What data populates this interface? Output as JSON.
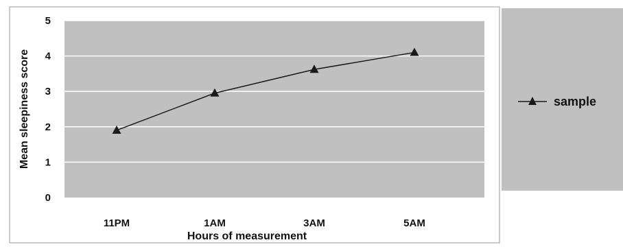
{
  "chart_data": {
    "type": "line",
    "categories": [
      "11PM",
      "1AM",
      "3AM",
      "5AM"
    ],
    "series": [
      {
        "name": "sample",
        "values": [
          1.9,
          2.95,
          3.62,
          4.1
        ],
        "color": "#1a1a1a",
        "marker": "triangle"
      }
    ],
    "xlabel": "Hours of measurement",
    "ylabel": "Mean sleepiness score",
    "ylim": [
      0,
      5
    ],
    "yticks": [
      "0",
      "1",
      "2",
      "3",
      "4",
      "5"
    ],
    "grid": true,
    "legend": "right",
    "colors": {
      "plot_background": "#c0c0c0",
      "legend_background": "#c0c0c0",
      "gridline": "#ffffff",
      "border": "#999999"
    }
  }
}
